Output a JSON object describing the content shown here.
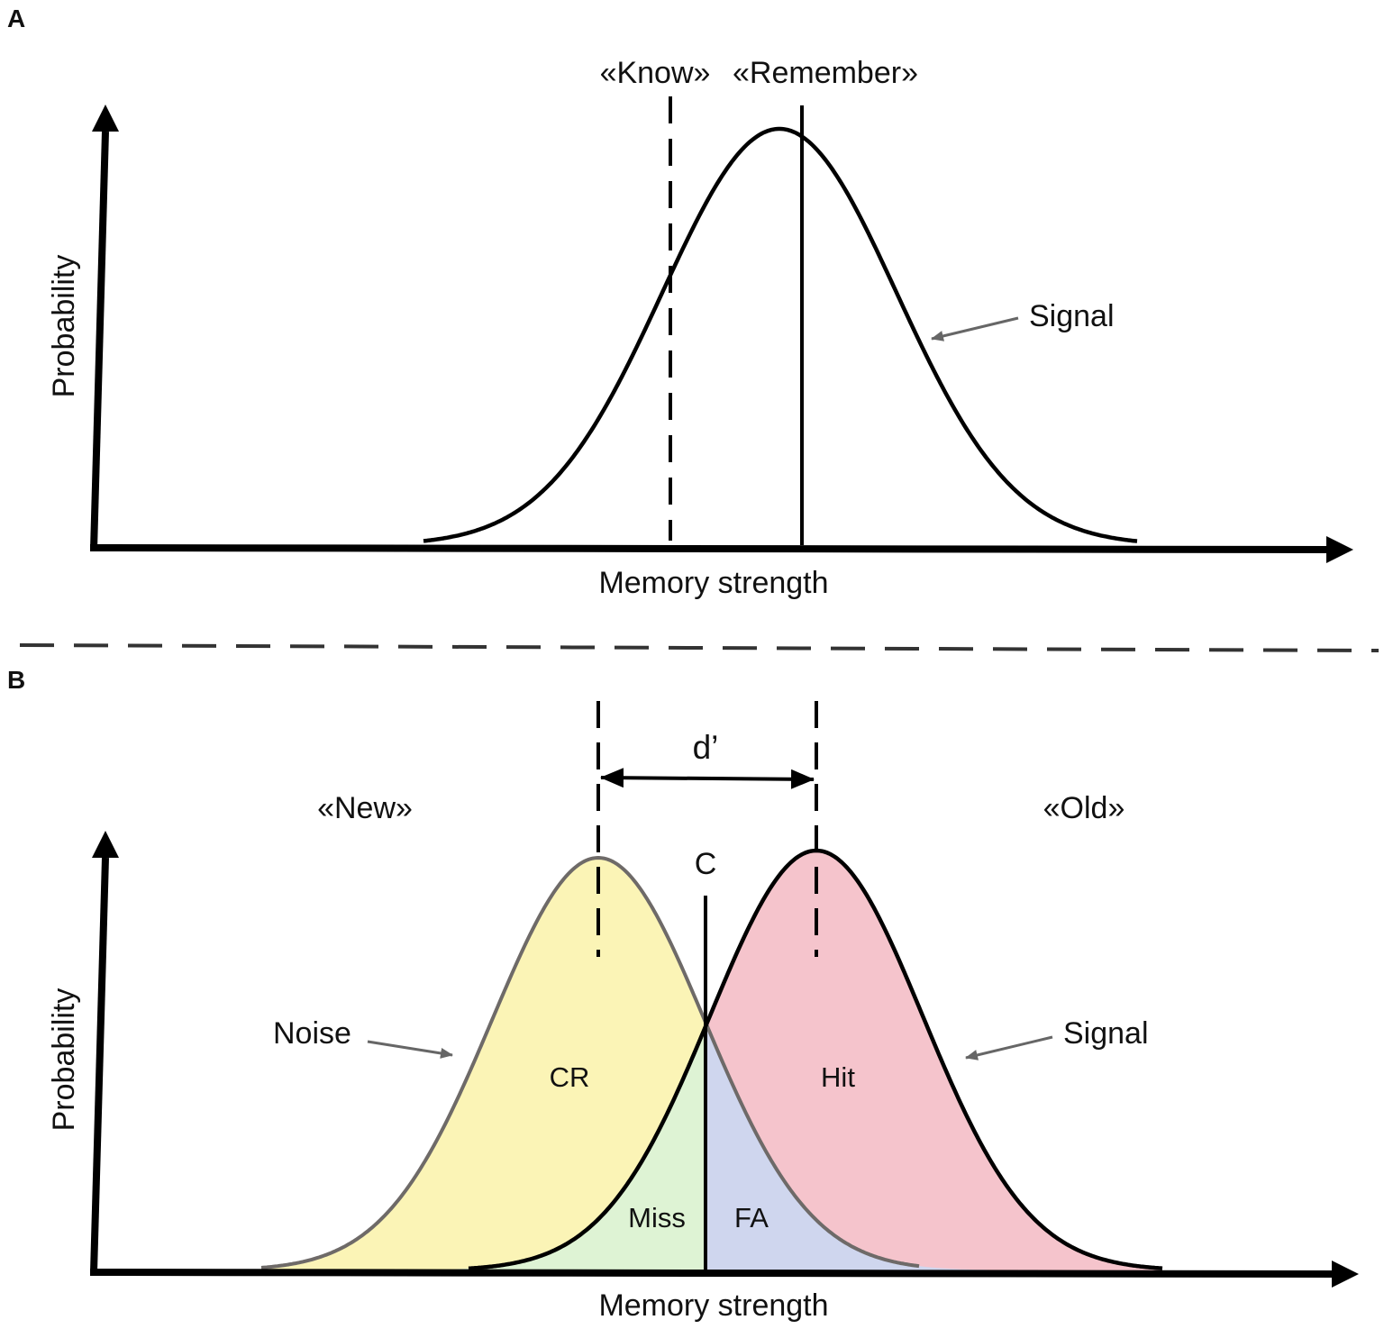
{
  "panel_a": {
    "letter": "A",
    "y_label": "Probability",
    "x_label": "Memory strength",
    "know_label": "«Know»",
    "remember_label": "«Remember»",
    "signal_label": "Signal"
  },
  "panel_b": {
    "letter": "B",
    "y_label": "Probability",
    "x_label": "Memory strength",
    "new_label": "«New»",
    "old_label": "«Old»",
    "dprime_label": "d’",
    "criterion_label": "C",
    "noise_label": "Noise",
    "signal_label": "Signal",
    "cr_label": "CR",
    "hit_label": "Hit",
    "miss_label": "Miss",
    "fa_label": "FA"
  },
  "colors": {
    "noise_fill": "#fbf4b6",
    "signal_fill": "#f5c4cc",
    "miss_fill": "#def3d4",
    "fa_fill": "#cfd6ee",
    "noise_line": "#6e6a68",
    "signal_line": "#000000",
    "arrow_gray": "#666666"
  }
}
